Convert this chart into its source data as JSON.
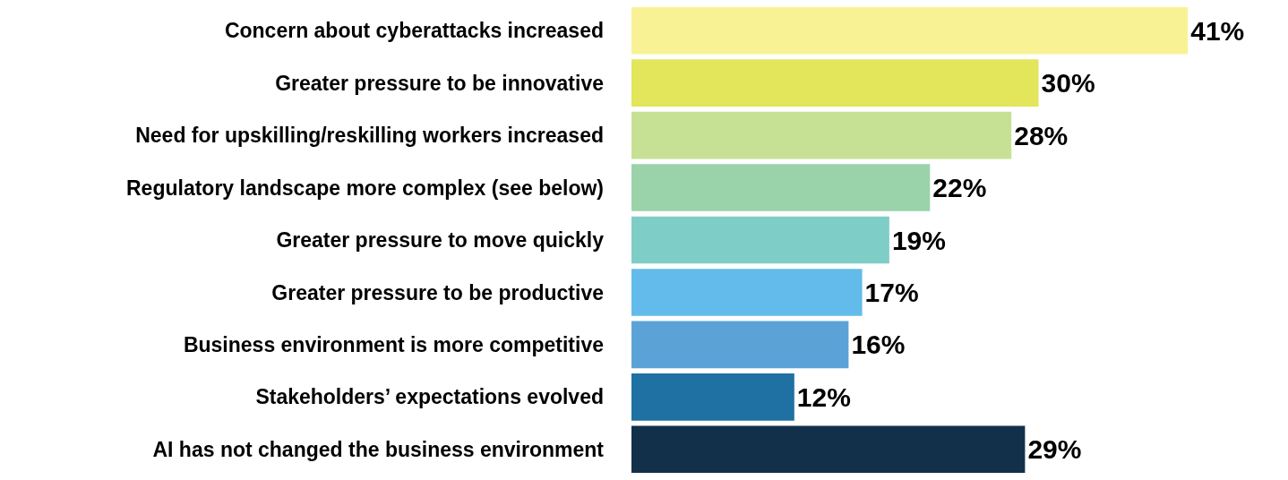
{
  "chart_data": {
    "type": "bar",
    "orientation": "horizontal",
    "categories": [
      "Concern about cyberattacks increased",
      "Greater pressure to be innovative",
      "Need for upskilling/reskilling workers increased",
      "Regulatory landscape more complex (see below)",
      "Greater pressure to move quickly",
      "Greater pressure to be productive",
      "Business environment is more competitive",
      "Stakeholders’ expectations evolved",
      "AI has not changed the business environment"
    ],
    "values": [
      41,
      30,
      28,
      22,
      19,
      17,
      16,
      12,
      29
    ],
    "value_labels": [
      "41%",
      "30%",
      "28%",
      "22%",
      "19%",
      "17%",
      "16%",
      "12%",
      "29%"
    ],
    "colors": [
      "#f9f295",
      "#e3e55a",
      "#c7e194",
      "#9ad3aa",
      "#7ecdc6",
      "#62bbea",
      "#5ba3d7",
      "#1f70a3",
      "#13304a"
    ],
    "tick_labels": "y"
  }
}
